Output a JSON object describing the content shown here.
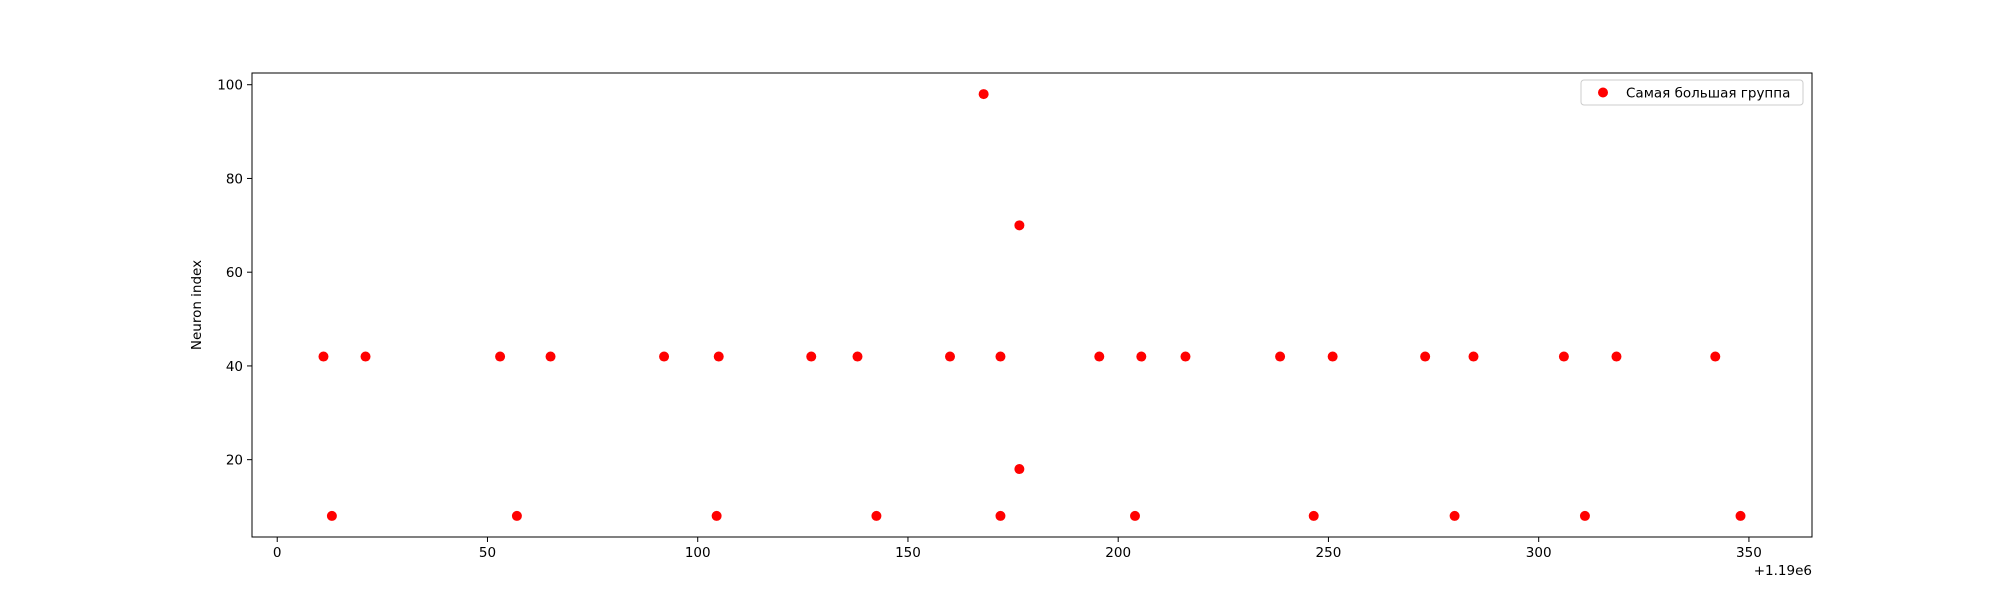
{
  "chart_data": {
    "type": "scatter",
    "title": "",
    "xlabel": "",
    "ylabel": "Neuron index",
    "x_offset_label": "+1.19e6",
    "xlim": [
      -6,
      365
    ],
    "ylim": [
      3.5,
      102.5
    ],
    "xticks": [
      0,
      50,
      100,
      150,
      200,
      250,
      300,
      350
    ],
    "xtick_labels": [
      "0",
      "50",
      "100",
      "150",
      "200",
      "250",
      "300",
      "350"
    ],
    "yticks": [
      20,
      40,
      60,
      80,
      100
    ],
    "ytick_labels": [
      "20",
      "40",
      "60",
      "80",
      "100"
    ],
    "grid": false,
    "legend_position": "top-right",
    "series": [
      {
        "name": "Самая большая группа",
        "color": "#ff0000",
        "marker": "circle",
        "points": [
          {
            "x": 11,
            "y": 42
          },
          {
            "x": 13,
            "y": 8
          },
          {
            "x": 21,
            "y": 42
          },
          {
            "x": 53,
            "y": 42
          },
          {
            "x": 57,
            "y": 8
          },
          {
            "x": 65,
            "y": 42
          },
          {
            "x": 92,
            "y": 42
          },
          {
            "x": 104.5,
            "y": 8
          },
          {
            "x": 105,
            "y": 42
          },
          {
            "x": 127,
            "y": 42
          },
          {
            "x": 138,
            "y": 42
          },
          {
            "x": 142.5,
            "y": 8
          },
          {
            "x": 160,
            "y": 42
          },
          {
            "x": 168,
            "y": 98
          },
          {
            "x": 172,
            "y": 42
          },
          {
            "x": 172,
            "y": 8
          },
          {
            "x": 176.5,
            "y": 70
          },
          {
            "x": 176.5,
            "y": 18
          },
          {
            "x": 195.5,
            "y": 42
          },
          {
            "x": 204,
            "y": 8
          },
          {
            "x": 205.5,
            "y": 42
          },
          {
            "x": 216,
            "y": 42
          },
          {
            "x": 238.5,
            "y": 42
          },
          {
            "x": 246.5,
            "y": 8
          },
          {
            "x": 251,
            "y": 42
          },
          {
            "x": 273,
            "y": 42
          },
          {
            "x": 280,
            "y": 8
          },
          {
            "x": 284.5,
            "y": 42
          },
          {
            "x": 306,
            "y": 42
          },
          {
            "x": 311,
            "y": 8
          },
          {
            "x": 318.5,
            "y": 42
          },
          {
            "x": 342,
            "y": 42
          },
          {
            "x": 348,
            "y": 8
          }
        ]
      }
    ]
  }
}
